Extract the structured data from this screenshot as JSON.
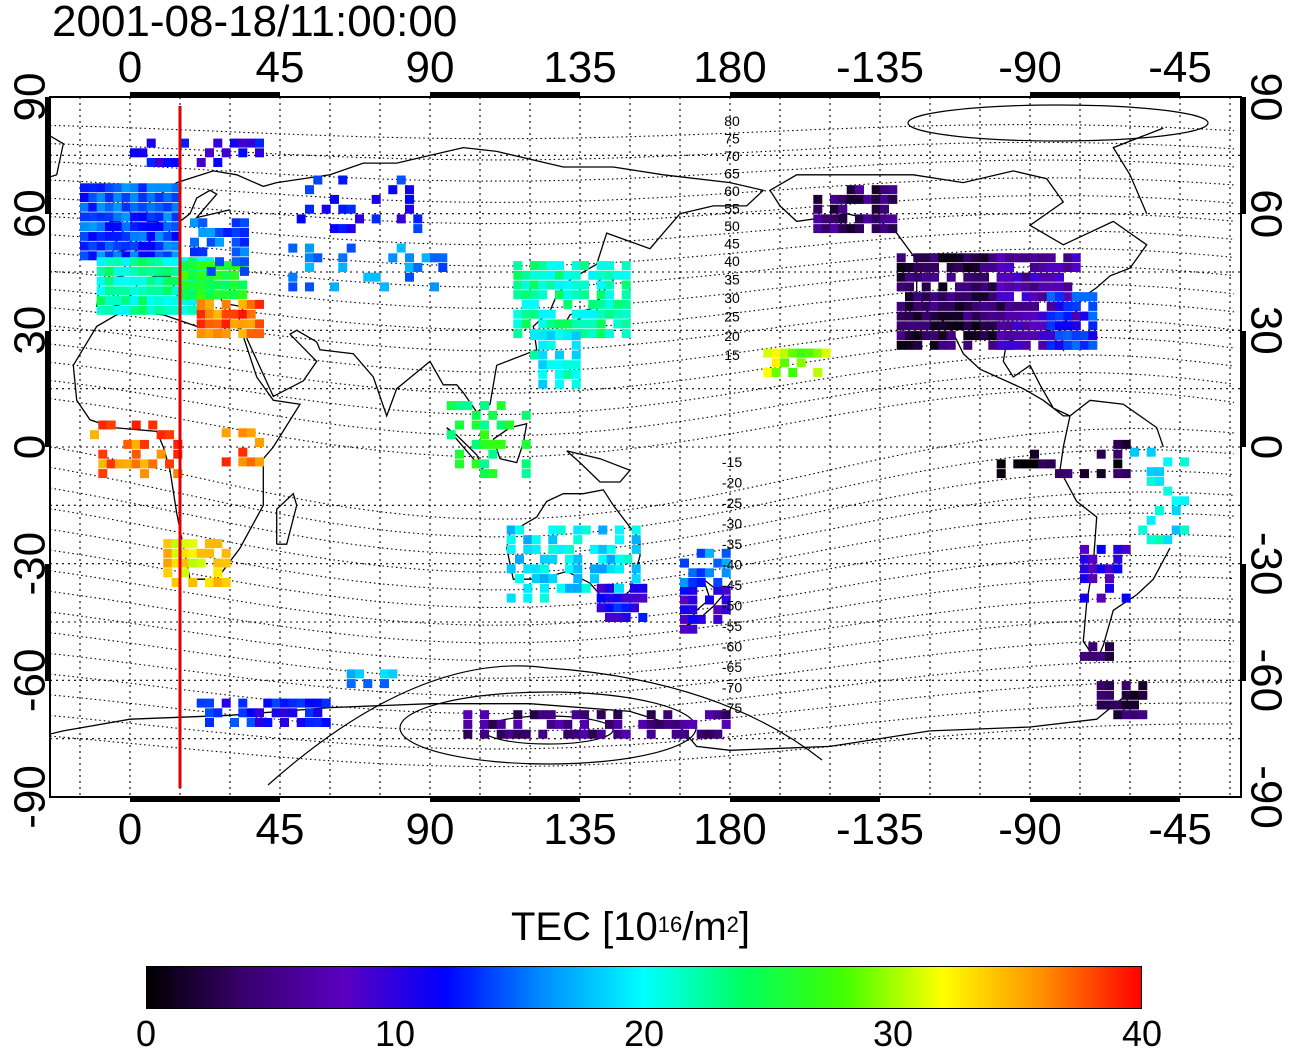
{
  "title": "2001-08-18/11:00:00",
  "map": {
    "lon_ticks_top": [
      "0",
      "45",
      "90",
      "135",
      "180",
      "-135",
      "-90",
      "-45"
    ],
    "lon_ticks_bottom": [
      "0",
      "45",
      "90",
      "135",
      "180",
      "-135",
      "-90",
      "-45"
    ],
    "lat_ticks_left": [
      "90",
      "60",
      "30",
      "0",
      "-30",
      "-60",
      "-90"
    ],
    "lat_ticks_right": [
      "90",
      "60",
      "30",
      "0",
      "-30",
      "-60",
      "-90"
    ],
    "contour_labels_north": [
      "80",
      "75",
      "70",
      "65",
      "60",
      "55",
      "50",
      "45",
      "40",
      "35",
      "30",
      "25",
      "20",
      "15"
    ],
    "contour_labels_south": [
      "-15",
      "-20",
      "-25",
      "-30",
      "-35",
      "-40",
      "-45",
      "-50",
      "-55",
      "-60",
      "-65",
      "-70",
      "-75"
    ],
    "marker_line": {
      "lon": 15,
      "color": "#e00000"
    }
  },
  "colorbar": {
    "title_main": "TEC  [10",
    "title_sup1": "16",
    "title_mid": "/m",
    "title_sup2": "2",
    "title_end": "]",
    "tick_labels": [
      "0",
      "10",
      "20",
      "30",
      "40"
    ],
    "min": 0,
    "max": 40,
    "colors": [
      "#000000",
      "#3a0070",
      "#5a00c0",
      "#0000ff",
      "#0090ff",
      "#00ffff",
      "#00ff60",
      "#40ff00",
      "#ffff00",
      "#ff9000",
      "#ff0000"
    ]
  }
}
